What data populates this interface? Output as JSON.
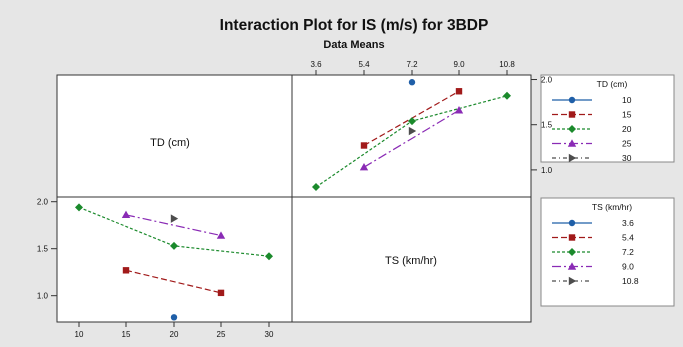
{
  "chart_data": {
    "type": "line",
    "plot_kind": "interaction-matrix",
    "title": "Interaction Plot for IS (m/s) for 3BDP",
    "subtitle": "Data Means",
    "factors": [
      "TD (cm)",
      "TS (km/hr)"
    ],
    "panels": [
      {
        "name": "top-right",
        "x_factor": "TS (km/hr)",
        "series_factor": "TD (cm)",
        "x_ticks": [
          "3.6",
          "5.4",
          "7.2",
          "9.0",
          "10.8"
        ],
        "y_ticks": [
          "1.0",
          "1.5",
          "2.0"
        ],
        "ylim": [
          0.7,
          2.05
        ],
        "series": [
          {
            "name": "10",
            "x": [
              7.2
            ],
            "y": [
              1.97
            ]
          },
          {
            "name": "15",
            "x": [
              5.4,
              9.0
            ],
            "y": [
              1.27,
              1.87
            ]
          },
          {
            "name": "20",
            "x": [
              3.6,
              7.2,
              10.8
            ],
            "y": [
              0.81,
              1.54,
              1.82
            ]
          },
          {
            "name": "25",
            "x": [
              5.4,
              9.0
            ],
            "y": [
              1.03,
              1.66
            ]
          },
          {
            "name": "30",
            "x": [
              7.2
            ],
            "y": [
              1.43
            ]
          }
        ]
      },
      {
        "name": "bottom-left",
        "x_factor": "TD (cm)",
        "series_factor": "TS (km/hr)",
        "x_ticks": [
          "10",
          "15",
          "20",
          "25",
          "30"
        ],
        "y_ticks": [
          "1.0",
          "1.5",
          "2.0"
        ],
        "ylim": [
          0.72,
          2.05
        ],
        "series": [
          {
            "name": "3.6",
            "x": [
              20
            ],
            "y": [
              0.77
            ]
          },
          {
            "name": "5.4",
            "x": [
              15,
              25
            ],
            "y": [
              1.27,
              1.03
            ]
          },
          {
            "name": "7.2",
            "x": [
              10,
              20,
              30
            ],
            "y": [
              1.94,
              1.53,
              1.42
            ]
          },
          {
            "name": "9.0",
            "x": [
              15,
              25
            ],
            "y": [
              1.86,
              1.64
            ]
          },
          {
            "name": "10.8",
            "x": [
              20
            ],
            "y": [
              1.82
            ]
          }
        ]
      }
    ],
    "legends": [
      {
        "title": "TD (cm)",
        "entries": [
          "10",
          "15",
          "20",
          "25",
          "30"
        ]
      },
      {
        "title": "TS (km/hr)",
        "entries": [
          "3.6",
          "5.4",
          "7.2",
          "9.0",
          "10.8"
        ]
      }
    ],
    "series_styles": [
      {
        "color": "#1f5fa8",
        "marker": "circle",
        "dash": "none"
      },
      {
        "color": "#a11a1a",
        "marker": "square",
        "dash": "6,3"
      },
      {
        "color": "#1b8a2c",
        "marker": "diamond",
        "dash": "3,2"
      },
      {
        "color": "#8a2bb5",
        "marker": "triangle-up",
        "dash": "9,3,2,3"
      },
      {
        "color": "#4d4d4d",
        "marker": "triangle-right",
        "dash": "4,3,1,3"
      }
    ]
  }
}
